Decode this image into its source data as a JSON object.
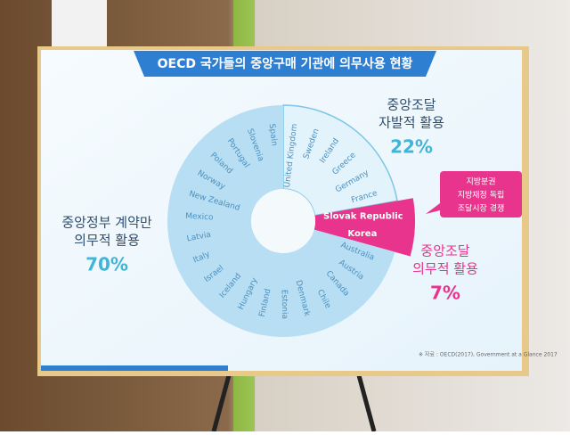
{
  "chart_data": {
    "type": "pie",
    "title": "OECD 국가들의 중앙구매 기관에 의무사용 현황",
    "categories": [
      [
        "중앙조달",
        "자발적 활용"
      ],
      [
        "중앙조달",
        "의무적 활용"
      ],
      [
        "중앙정부 계약만",
        "의무적 활용"
      ]
    ],
    "values": [
      22,
      7,
      70
    ],
    "value_labels": [
      "22%",
      "7%",
      "70%"
    ],
    "colors": [
      "#e3f3fb",
      "#e8348c",
      "#b8def3"
    ],
    "countries": [
      [
        "United Kingdom",
        "Sweden",
        "Ireland",
        "Greece",
        "Germany",
        "France"
      ],
      [
        "Slovak Republic",
        "Korea"
      ],
      [
        "Australia",
        "Austria",
        "Canada",
        "Chile",
        "Denmark",
        "Estonia",
        "Finland",
        "Hungary",
        "Iceland",
        "Israel",
        "Italy",
        "Latvia",
        "Mexico",
        "New Zealand",
        "Norway",
        "Poland",
        "Portugal",
        "Slovenia",
        "Spain"
      ]
    ],
    "callout": [
      "지방분권",
      "지방재정 독립",
      "조달시장 경쟁"
    ],
    "source": "※ 자료 : OECD(2017), Government at a Glance 2017"
  }
}
